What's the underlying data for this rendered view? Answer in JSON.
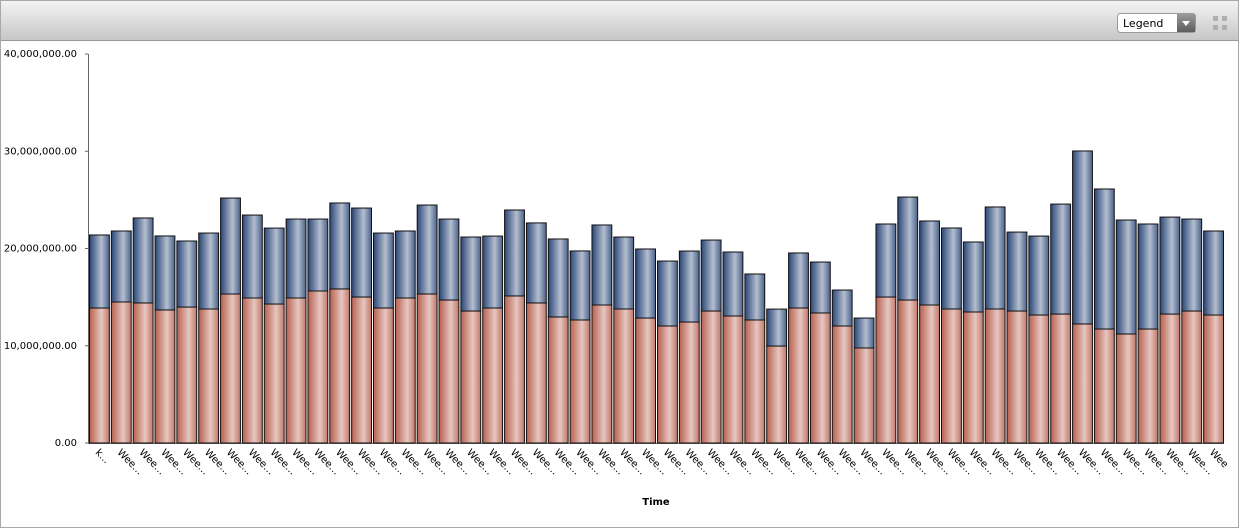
{
  "ui": {
    "legend_dropdown": "Legend"
  },
  "chart_data": {
    "type": "stacked-bar",
    "x_label": "Time",
    "categories": [
      "k...",
      "Wee…",
      "Wee…",
      "Wee…",
      "Wee…",
      "Wee…",
      "Wee…",
      "Wee…",
      "Wee…",
      "Wee…",
      "Wee…",
      "Wee…",
      "Wee…",
      "Wee…",
      "Wee…",
      "Wee…",
      "Wee…",
      "Wee…",
      "Wee…",
      "Wee…",
      "Wee…",
      "Wee…",
      "Wee…",
      "Wee…",
      "Wee…",
      "Wee…",
      "Wee…",
      "Wee…",
      "Wee…",
      "Wee…",
      "Wee…",
      "Wee…",
      "Wee…",
      "Wee…",
      "Wee…",
      "Wee…",
      "Wee…",
      "Wee…",
      "Wee…",
      "Wee…",
      "Wee…",
      "Wee…",
      "Wee…",
      "Wee…",
      "Wee…",
      "Wee…",
      "Wee…",
      "Wee…",
      "Wee…",
      "Wee…",
      "Wee…",
      "Wee"
    ],
    "series": [
      {
        "color": "#b8604e",
        "values": [
          13880000,
          14500000,
          14400000,
          13680000,
          13980000,
          13780000,
          15320000,
          14910000,
          14290000,
          14910000,
          15630000,
          15840000,
          15010000,
          13880000,
          14910000,
          15320000,
          14700000,
          13570000,
          13880000,
          15120000,
          14400000,
          12960000,
          12650000,
          14190000,
          13780000,
          12850000,
          12030000,
          12440000,
          13570000,
          13060000,
          12650000,
          9970000,
          13880000,
          13370000,
          12030000,
          9770000,
          15010000,
          14700000,
          14190000,
          13780000,
          13470000,
          13780000,
          13570000,
          13160000,
          13260000,
          12240000,
          11720000,
          11210000,
          11720000,
          13260000,
          13570000,
          13160000
        ]
      },
      {
        "color": "#2a4677",
        "values": [
          7510000,
          7300000,
          8740000,
          7610000,
          6790000,
          7810000,
          9870000,
          8530000,
          7810000,
          8120000,
          7400000,
          8840000,
          9150000,
          7710000,
          6890000,
          9150000,
          8330000,
          7610000,
          7400000,
          8840000,
          8230000,
          8020000,
          7100000,
          8230000,
          7400000,
          7100000,
          6680000,
          7300000,
          7300000,
          6580000,
          4730000,
          3800000,
          5660000,
          5240000,
          3700000,
          3080000,
          7510000,
          10590000,
          8640000,
          8330000,
          7200000,
          10490000,
          8120000,
          8120000,
          11310000,
          17790000,
          14400000,
          11720000,
          10800000,
          9970000,
          9460000,
          8640000
        ]
      }
    ],
    "ylim": [
      0,
      40000000
    ],
    "yticks": [
      {
        "value": 0,
        "label": "0.00"
      },
      {
        "value": 10000000,
        "label": "10,000,000.00"
      },
      {
        "value": 20000000,
        "label": "20,000,000.00"
      },
      {
        "value": 30000000,
        "label": "30,000,000.00"
      },
      {
        "value": 40000000,
        "label": "40,000,000.00"
      }
    ]
  }
}
